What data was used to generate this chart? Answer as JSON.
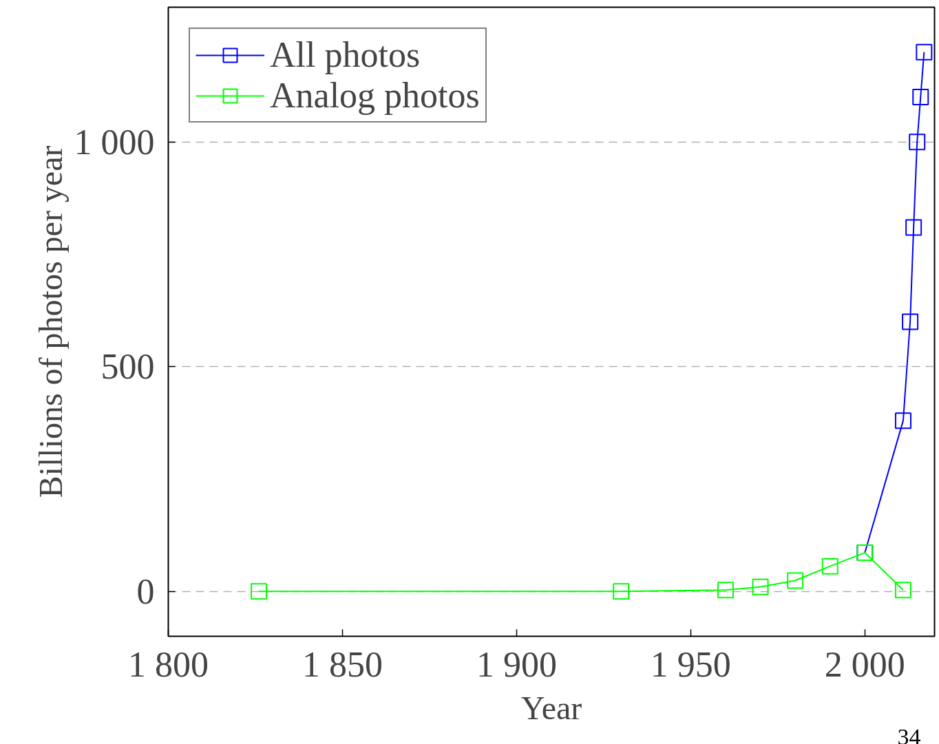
{
  "chart_data": {
    "type": "line",
    "xlabel": "Year",
    "ylabel": "Billions of photos per year",
    "annotations": [
      "34"
    ],
    "xlim": [
      1800,
      2020
    ],
    "ylim": [
      -100,
      1300
    ],
    "xticks": [
      {
        "value": 1800,
        "label": "1 800"
      },
      {
        "value": 1850,
        "label": "1 850"
      },
      {
        "value": 1900,
        "label": "1 900"
      },
      {
        "value": 1950,
        "label": "1 950"
      },
      {
        "value": 2000,
        "label": "2 000"
      }
    ],
    "yticks": [
      0,
      500,
      {
        "value": 1000,
        "label": "1 000"
      }
    ],
    "grid": "y",
    "legend": "top left",
    "marker": "square",
    "line_style": "solid",
    "series": [
      {
        "name": "All photos",
        "color": "#0000ff",
        "x": [
          2000,
          2011,
          2013,
          2014,
          2015,
          2016,
          2017
        ],
        "values": [
          86,
          380,
          600,
          810,
          1000,
          1100,
          1200
        ]
      },
      {
        "name": "Analog photos",
        "color": "#00ff00",
        "x": [
          1826,
          1930,
          1960,
          1970,
          1980,
          1990,
          2000,
          2011
        ],
        "values": [
          0,
          0,
          3,
          10,
          24,
          56,
          86,
          3
        ]
      }
    ]
  }
}
